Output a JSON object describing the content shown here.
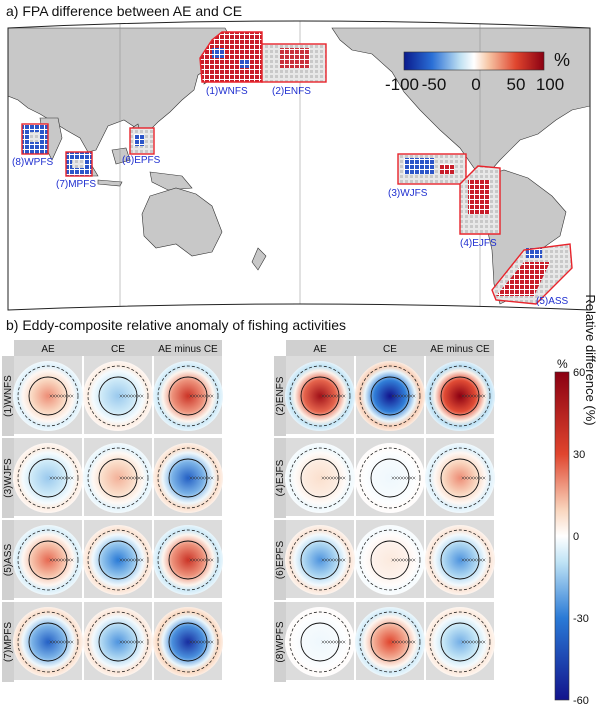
{
  "panel_a": {
    "title": "a) FPA difference between AE and CE",
    "colorbar": {
      "unit": "%",
      "tick_labels": [
        "-100",
        "-50",
        "0",
        "50",
        "100"
      ],
      "range": [
        -100,
        100
      ]
    },
    "regions": [
      {
        "id": "WNFS",
        "label": "(1)WNFS"
      },
      {
        "id": "ENFS",
        "label": "(2)ENFS"
      },
      {
        "id": "WJFS",
        "label": "(3)WJFS"
      },
      {
        "id": "EJFS",
        "label": "(4)EJFS"
      },
      {
        "id": "ASS",
        "label": "(5)ASS"
      },
      {
        "id": "EPFS",
        "label": "(6)EPFS"
      },
      {
        "id": "MPFS",
        "label": "(7)MPFS"
      },
      {
        "id": "WPFS",
        "label": "(8)WPFS"
      }
    ]
  },
  "panel_b": {
    "title": "b) Eddy-composite relative anomaly of fishing activities",
    "column_headers": [
      "AE",
      "CE",
      "AE minus CE"
    ],
    "colorbar": {
      "unit": "%",
      "label": "Relative difference (%)",
      "tick_labels": [
        "60",
        "30",
        "0",
        "-30",
        "-60"
      ],
      "range": [
        -60,
        60
      ]
    }
  },
  "chart_data": [
    {
      "type": "heatmap",
      "title": "a) FPA difference between AE and CE",
      "description_regions": [
        "(1)WNFS",
        "(2)ENFS",
        "(3)WJFS",
        "(4)EJFS",
        "(5)ASS",
        "(6)EPFS",
        "(7)MPFS",
        "(8)WPFS"
      ],
      "colorbar_range": [
        -100,
        100
      ],
      "unit": "%"
    },
    {
      "type": "heatmap",
      "title": "b) Eddy-composite relative anomaly of fishing activities",
      "columns": [
        "AE",
        "CE",
        "AE minus CE"
      ],
      "colorbar_range": [
        -60,
        60
      ],
      "colorbar_label": "Relative difference (%)",
      "series": [
        {
          "name": "(1)WNFS",
          "values": [
            30,
            -25,
            45
          ]
        },
        {
          "name": "(2)ENFS",
          "values": [
            55,
            -60,
            60
          ]
        },
        {
          "name": "(3)WJFS",
          "values": [
            -25,
            25,
            -45
          ]
        },
        {
          "name": "(4)EJFS",
          "values": [
            15,
            -5,
            30
          ]
        },
        {
          "name": "(5)ASS",
          "values": [
            35,
            -40,
            45
          ]
        },
        {
          "name": "(6)EPFS",
          "values": [
            -35,
            10,
            -35
          ]
        },
        {
          "name": "(7)MPFS",
          "values": [
            -45,
            -35,
            -55
          ]
        },
        {
          "name": "(8)WPFS",
          "values": [
            -5,
            40,
            -30
          ]
        }
      ]
    }
  ]
}
